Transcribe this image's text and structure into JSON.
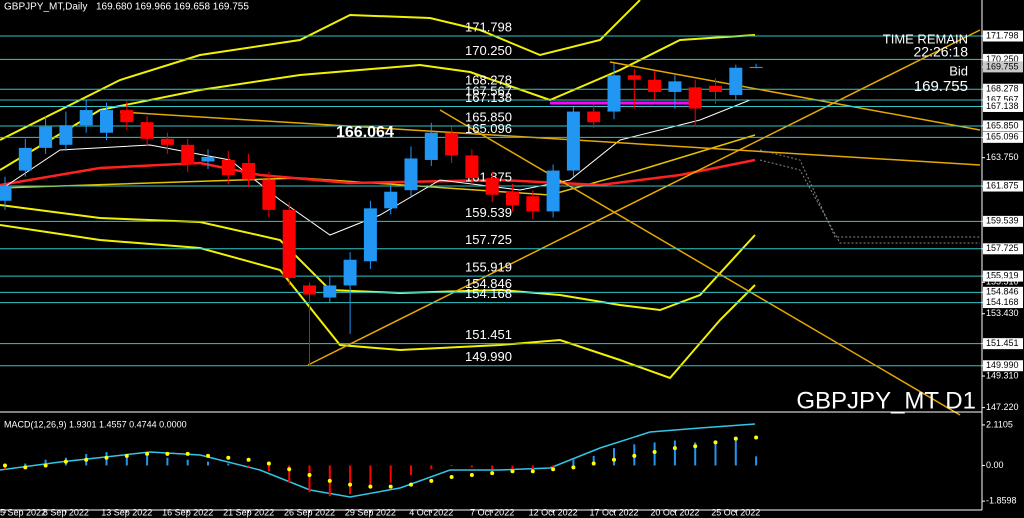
{
  "chart_data": {
    "type": "candlestick",
    "title": "GBPJPY_MT,Daily",
    "quote": "169.680 169.966 169.658 169.755",
    "time_remain_label": "TIME REMAIN",
    "time_remain": "22:26:18",
    "bid_label": "Bid",
    "bid": 169.755,
    "symbol_label": "GBPJPY_MT D1",
    "high_label": 166.064,
    "categories": [
      "5 Sep 2022",
      null,
      null,
      "8 Sep 2022",
      null,
      null,
      "13 Sep 2022",
      null,
      null,
      "16 Sep 2022",
      null,
      null,
      "21 Sep 2022",
      null,
      null,
      "26 Sep 2022",
      null,
      null,
      "29 Sep 2022",
      null,
      null,
      "4 Oct 2022",
      null,
      null,
      "7 Oct 2022",
      null,
      null,
      "12 Oct 2022",
      null,
      null,
      "17 Oct 2022",
      null,
      null,
      "20 Oct 2022",
      null,
      null,
      "25 Oct 2022",
      null
    ],
    "open": [
      160.9,
      162.9,
      164.4,
      164.6,
      165.9,
      165.4,
      166.9,
      166.1,
      165.0,
      164.6,
      163.5,
      163.6,
      163.4,
      162.3,
      160.3,
      155.3,
      154.5,
      155.3,
      156.9,
      160.4,
      161.6,
      163.6,
      165.4,
      163.9,
      162.4,
      161.5,
      161.2,
      160.2,
      162.9,
      166.8,
      166.8,
      169.2,
      168.9,
      168.1,
      168.4,
      168.5,
      167.9,
      169.68
    ],
    "high": [
      162.5,
      165.0,
      166.5,
      166.8,
      167.6,
      167.4,
      167.5,
      166.5,
      165.4,
      165.0,
      164.3,
      164.2,
      164.0,
      162.8,
      160.8,
      155.5,
      155.9,
      157.5,
      160.9,
      162.0,
      164.5,
      166.064,
      165.8,
      164.3,
      162.8,
      162.0,
      161.6,
      163.3,
      167.1,
      167.3,
      170.0,
      169.6,
      169.5,
      169.2,
      168.9,
      169.0,
      169.9,
      169.966
    ],
    "low": [
      160.3,
      162.5,
      164.0,
      164.2,
      165.4,
      164.9,
      165.6,
      164.5,
      164.0,
      162.8,
      163.0,
      162.0,
      161.8,
      159.8,
      155.3,
      149.99,
      154.2,
      152.1,
      156.4,
      160.0,
      161.2,
      163.2,
      163.4,
      162.0,
      160.8,
      160.2,
      159.7,
      159.8,
      162.5,
      165.7,
      166.3,
      167.0,
      167.6,
      167.0,
      165.8,
      167.3,
      167.6,
      169.658
    ],
    "close": [
      161.9,
      164.4,
      165.8,
      165.9,
      166.9,
      166.9,
      166.1,
      165.0,
      164.6,
      163.3,
      163.8,
      162.6,
      162.3,
      160.3,
      155.8,
      154.7,
      155.3,
      157.0,
      160.4,
      161.5,
      163.7,
      165.4,
      163.9,
      162.4,
      161.3,
      160.6,
      160.2,
      162.9,
      166.8,
      166.1,
      169.2,
      168.9,
      168.1,
      168.8,
      167.0,
      168.1,
      169.7,
      169.755
    ],
    "bull_color": "#2196f3",
    "bear_color": "#ff0000",
    "level_color": "#33c5c5",
    "levels": [
      171.798,
      {
        "value": 170.25,
        "label": "170.250"
      },
      168.278,
      167.567,
      167.138,
      {
        "value": 165.85,
        "label": "165.850"
      },
      165.096,
      161.875,
      159.539,
      157.725,
      155.919,
      154.846,
      154.168,
      151.451,
      {
        "value": 149.99,
        "label": "149.990"
      }
    ],
    "ylim": [
      146.93,
      174.18
    ],
    "yticks": [
      171.798,
      {
        "value": 170.25,
        "label": "170.250"
      },
      169.755,
      168.278,
      167.567,
      167.138,
      {
        "value": 165.85,
        "label": "165.850"
      },
      165.096,
      {
        "value": 163.75,
        "label": "163.750"
      },
      161.875,
      159.539,
      157.725,
      155.919,
      {
        "value": 155.51,
        "label": "155.510"
      },
      154.846,
      154.168,
      {
        "value": 153.43,
        "label": "153.430"
      },
      151.451,
      {
        "value": 149.99,
        "label": "149.990"
      },
      {
        "value": 149.31,
        "label": "149.310"
      },
      {
        "value": 147.22,
        "label": "147.220"
      }
    ],
    "macd": {
      "title": "MACD(12,26,9) 1.9301 1.4557 0.4744 0.0000",
      "ylim": [
        -2.32,
        2.68
      ],
      "yticks": [
        2.1105,
        {
          "value": 0,
          "label": "0.00"
        },
        -1.8598
      ],
      "histogram": [
        -0.2,
        0.1,
        0.3,
        0.4,
        0.6,
        0.7,
        0.6,
        0.5,
        0.4,
        0.3,
        0.2,
        0.1,
        -0.1,
        -0.3,
        -0.9,
        -1.4,
        -1.6,
        -1.5,
        -1.2,
        -0.9,
        -0.5,
        -0.2,
        0.0,
        -0.1,
        -0.2,
        -0.3,
        -0.4,
        -0.2,
        0.3,
        0.5,
        0.9,
        1.1,
        1.2,
        1.3,
        1.2,
        1.3,
        1.5,
        0.4744
      ],
      "signal": [
        0.0,
        -0.1,
        0.0,
        0.2,
        0.3,
        0.4,
        0.5,
        0.6,
        0.6,
        0.6,
        0.5,
        0.4,
        0.3,
        0.1,
        -0.2,
        -0.5,
        -0.8,
        -1.0,
        -1.1,
        -1.1,
        -1.0,
        -0.8,
        -0.6,
        -0.5,
        -0.4,
        -0.3,
        -0.3,
        -0.2,
        -0.1,
        0.1,
        0.3,
        0.5,
        0.7,
        0.9,
        1.0,
        1.2,
        1.4,
        1.4557
      ]
    }
  }
}
